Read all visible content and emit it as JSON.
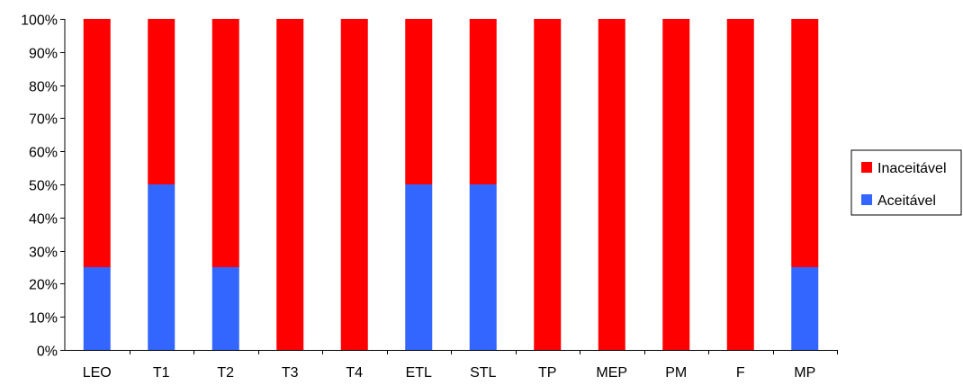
{
  "chart_data": {
    "type": "bar",
    "stacked": true,
    "categories": [
      "LEO",
      "T1",
      "T2",
      "T3",
      "T4",
      "ETL",
      "STL",
      "TP",
      "MEP",
      "PM",
      "F",
      "MP"
    ],
    "series": [
      {
        "name": "Aceitável",
        "color": "#3366ff",
        "values": [
          25,
          50,
          25,
          0,
          0,
          50,
          50,
          0,
          0,
          0,
          0,
          25
        ]
      },
      {
        "name": "Inaceitável",
        "color": "#ff0000",
        "values": [
          75,
          50,
          75,
          100,
          100,
          50,
          50,
          100,
          100,
          100,
          100,
          75
        ]
      }
    ],
    "y_ticks": [
      "0%",
      "10%",
      "20%",
      "30%",
      "40%",
      "50%",
      "60%",
      "70%",
      "80%",
      "90%",
      "100%"
    ],
    "ylim": [
      0,
      100
    ],
    "grid": false,
    "legend_position": "right",
    "legend_order": [
      "Inaceitável",
      "Aceitável"
    ]
  }
}
